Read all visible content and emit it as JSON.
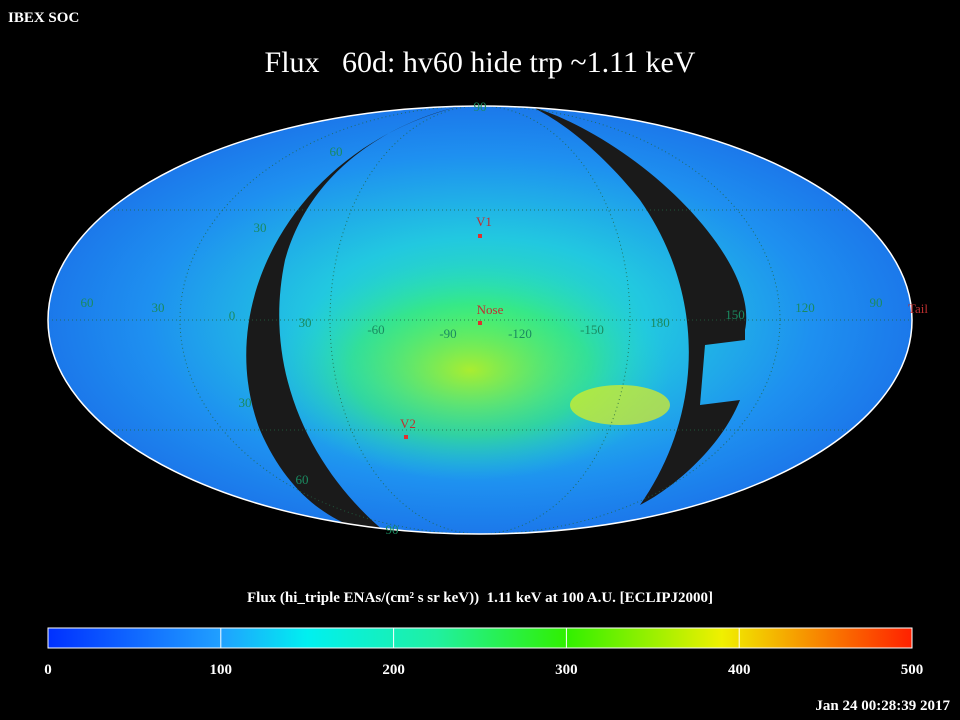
{
  "header": {
    "corner_label": "IBEX SOC",
    "title": "Flux   60d: hv60 hide trp ~1.11 keV",
    "timestamp": "Jan 24 00:28:39 2017"
  },
  "map": {
    "markers": [
      {
        "label": "V1"
      },
      {
        "label": "Nose"
      },
      {
        "label": "V2"
      },
      {
        "label": "Tail"
      }
    ],
    "grid_labels": [
      "90",
      "60",
      "30",
      "60",
      "30",
      "0",
      "30",
      "-60",
      "-90",
      "-120",
      "-150",
      "180",
      "150",
      "120",
      "90",
      "30",
      "60",
      "90"
    ]
  },
  "colorbar": {
    "label": "Flux (hi_triple ENAs/(cm² s sr keV))  1.11 keV at 100 A.U. [ECLIPJ2000]",
    "lim": [
      0,
      500
    ],
    "ticks": [
      0,
      100,
      200,
      300,
      400,
      500
    ]
  }
}
